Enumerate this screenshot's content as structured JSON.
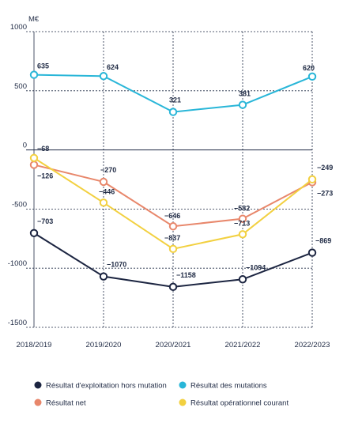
{
  "chart_data": {
    "type": "line",
    "unit": "M€",
    "categories": [
      "2018/2019",
      "2019/2020",
      "2020/2021",
      "2021/2022",
      "2022/2023"
    ],
    "ylim": [
      -1500,
      1000
    ],
    "yticks": [
      1000,
      500,
      0,
      -500,
      -1000,
      -1500
    ],
    "ytick_labels": [
      "1000",
      "500",
      "0",
      "-500",
      "-1000",
      "-1500"
    ],
    "grid": true,
    "legend_position": "bottom",
    "series": [
      {
        "name": "Résultat d'exploitation hors mutation",
        "color": "#1c2541",
        "values": [
          -703,
          -1070,
          -1158,
          -1094,
          -869
        ],
        "labels": [
          "−703",
          "−1070",
          "−1158",
          "−1094",
          "−869"
        ]
      },
      {
        "name": "Résultat des mutations",
        "color": "#29b6d8",
        "values": [
          635,
          624,
          321,
          381,
          620
        ],
        "labels": [
          "635",
          "624",
          "321",
          "381",
          "620"
        ]
      },
      {
        "name": "Résultat net",
        "color": "#e8876b",
        "values": [
          -126,
          -270,
          -646,
          -582,
          -273
        ],
        "labels": [
          "−126",
          "−270",
          "−646",
          "−582",
          "−273"
        ]
      },
      {
        "name": "Résultat opérationnel courant",
        "color": "#f2d040",
        "values": [
          -68,
          -446,
          -837,
          -713,
          -249
        ],
        "labels": [
          "−68",
          "−446",
          "−837",
          "−713",
          "−249"
        ]
      }
    ]
  }
}
